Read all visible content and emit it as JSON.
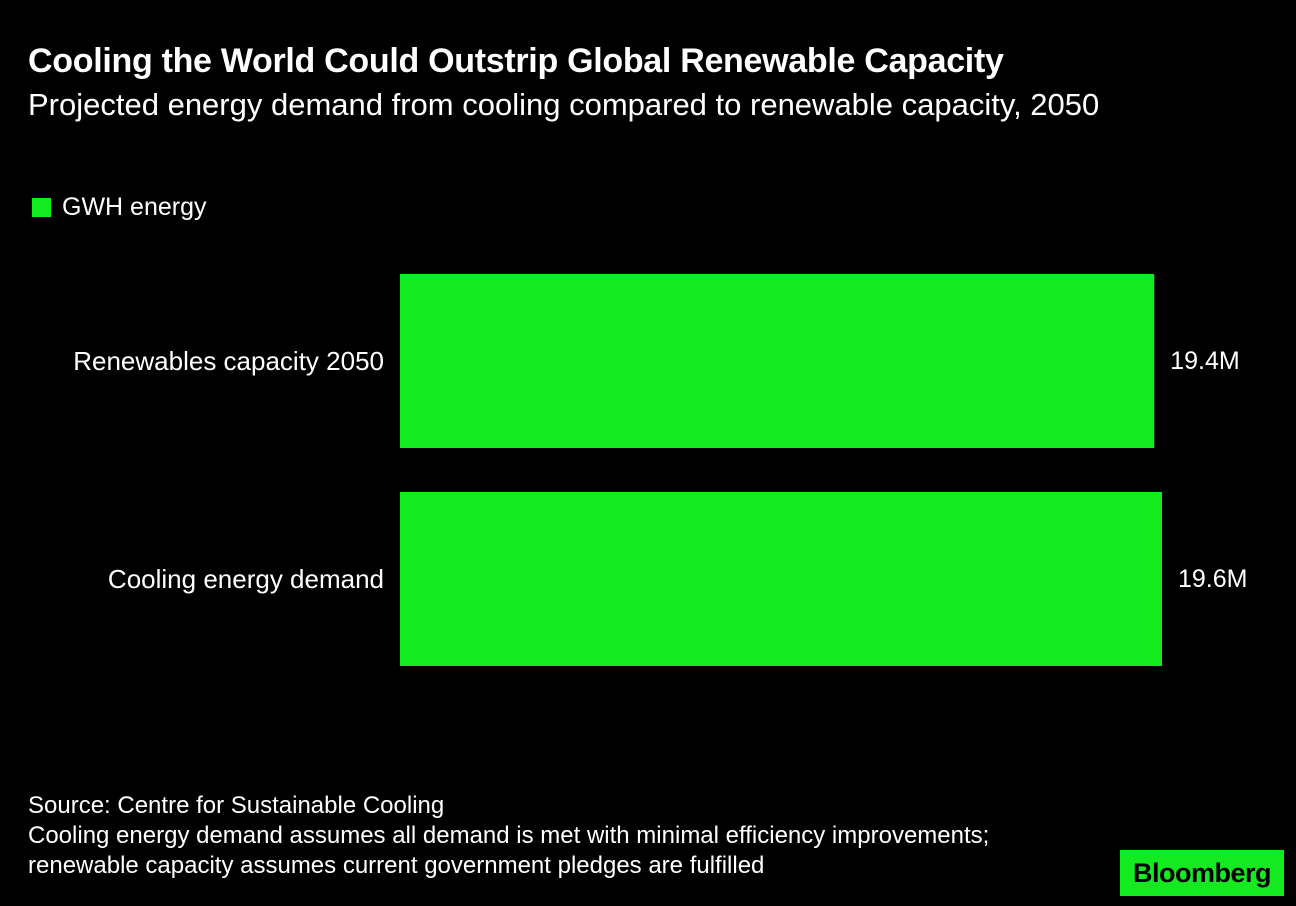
{
  "header": {
    "title": "Cooling the World Could Outstrip Global Renewable Capacity",
    "subtitle": "Projected energy demand from cooling compared to renewable capacity, 2050"
  },
  "colors": {
    "background": "#000000",
    "bar": "#13eb20",
    "text": "#ffffff"
  },
  "chart_data": {
    "type": "bar",
    "orientation": "horizontal",
    "title": "Cooling the World Could Outstrip Global Renewable Capacity",
    "subtitle": "Projected energy demand from cooling compared to renewable capacity, 2050",
    "categories": [
      "Renewables capacity 2050",
      "Cooling energy demand"
    ],
    "series": [
      {
        "name": "GWH energy",
        "values": [
          19.4,
          19.6
        ],
        "value_labels": [
          "19.4M",
          "19.6M"
        ]
      }
    ],
    "value_unit": "million GWH",
    "xlim": [
      0,
      19.6
    ],
    "xlabel": "",
    "ylabel": "",
    "grid": false,
    "legend": "top-left"
  },
  "footer": {
    "source": "Source: Centre for Sustainable Cooling",
    "note": "Cooling energy demand assumes all demand is met with minimal efficiency improvements; renewable capacity assumes current government pledges are fulfilled"
  },
  "brand": {
    "logo_text": "Bloomberg"
  }
}
